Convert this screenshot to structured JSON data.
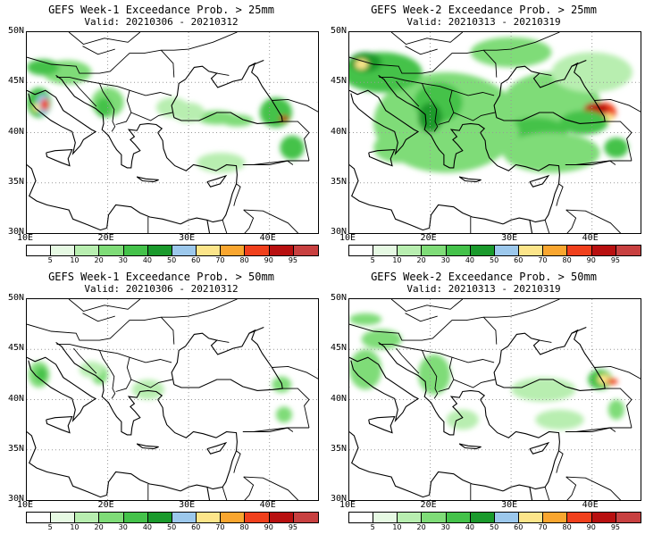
{
  "panels": [
    {
      "title": "GEFS Week-1 Exceedance Prob. > 25mm",
      "valid": "Valid: 20210306 - 20210312"
    },
    {
      "title": "GEFS Week-2 Exceedance Prob. > 25mm",
      "valid": "Valid: 20210313 - 20210319"
    },
    {
      "title": "GEFS Week-1 Exceedance Prob. > 50mm",
      "valid": "Valid: 20210306 - 20210312"
    },
    {
      "title": "GEFS Week-2 Exceedance Prob. > 50mm",
      "valid": "Valid: 20210313 - 20210319"
    }
  ],
  "lat_labels": [
    "50N",
    "45N",
    "40N",
    "35N",
    "30N"
  ],
  "lon_labels": [
    "10E",
    "20E",
    "30E",
    "40E"
  ],
  "colorbar": {
    "labels": [
      "5",
      "10",
      "20",
      "30",
      "40",
      "50",
      "60",
      "70",
      "80",
      "90",
      "95"
    ],
    "colors": [
      "#ffffff",
      "#e6f9e3",
      "#b8eeb0",
      "#7fdc78",
      "#44c24a",
      "#1a9a2c",
      "#9cc8ec",
      "#fce58a",
      "#f9a62f",
      "#f0401c",
      "#b81010",
      "#c84040"
    ]
  }
}
